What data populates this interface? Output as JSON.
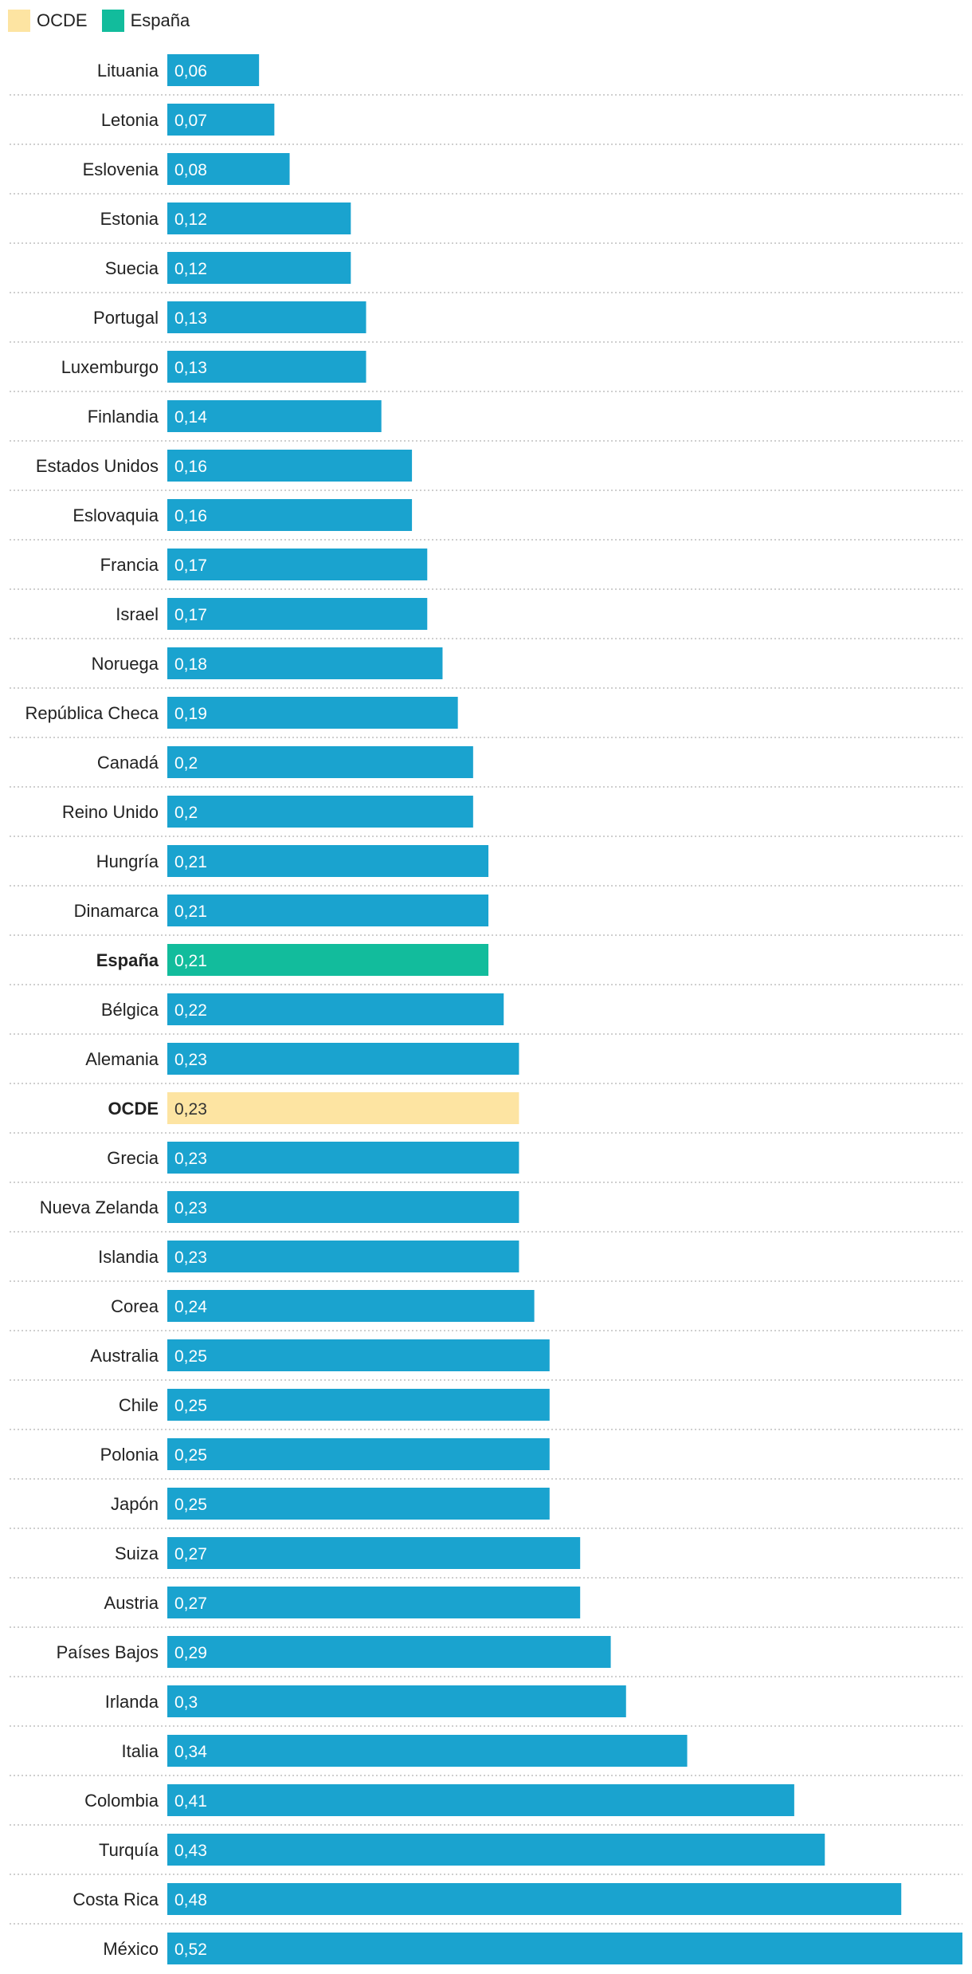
{
  "legend": {
    "items": [
      {
        "label": "OCDE",
        "color": "#fde4a2"
      },
      {
        "label": "España",
        "color": "#12bc9c"
      }
    ]
  },
  "colors": {
    "default": "#1aa3cf",
    "spain": "#12bc9c",
    "oecd": "#fde4a2",
    "label_on_dark": "#ffffff",
    "label_on_light": "#333333"
  },
  "chart_data": {
    "type": "bar",
    "orientation": "horizontal",
    "title": "",
    "xlabel": "",
    "ylabel": "",
    "xlim": [
      0,
      0.52
    ],
    "grid": false,
    "legend_position": "top-left",
    "highlighted": {
      "España": "spain",
      "OCDE": "oecd"
    },
    "categories": [
      "Lituania",
      "Letonia",
      "Eslovenia",
      "Estonia",
      "Suecia",
      "Portugal",
      "Luxemburgo",
      "Finlandia",
      "Estados Unidos",
      "Eslovaquia",
      "Francia",
      "Israel",
      "Noruega",
      "República Checa",
      "Canadá",
      "Reino Unido",
      "Hungría",
      "Dinamarca",
      "España",
      "Bélgica",
      "Alemania",
      "OCDE",
      "Grecia",
      "Nueva Zelanda",
      "Islandia",
      "Corea",
      "Australia",
      "Chile",
      "Polonia",
      "Japón",
      "Suiza",
      "Austria",
      "Países Bajos",
      "Irlanda",
      "Italia",
      "Colombia",
      "Turquía",
      "Costa Rica",
      "México"
    ],
    "values": [
      0.06,
      0.07,
      0.08,
      0.12,
      0.12,
      0.13,
      0.13,
      0.14,
      0.16,
      0.16,
      0.17,
      0.17,
      0.18,
      0.19,
      0.2,
      0.2,
      0.21,
      0.21,
      0.21,
      0.22,
      0.23,
      0.23,
      0.23,
      0.23,
      0.23,
      0.24,
      0.25,
      0.25,
      0.25,
      0.25,
      0.27,
      0.27,
      0.29,
      0.3,
      0.34,
      0.41,
      0.43,
      0.48,
      0.52
    ],
    "value_labels": [
      "0,06",
      "0,07",
      "0,08",
      "0,12",
      "0,12",
      "0,13",
      "0,13",
      "0,14",
      "0,16",
      "0,16",
      "0,17",
      "0,17",
      "0,18",
      "0,19",
      "0,2",
      "0,2",
      "0,21",
      "0,21",
      "0,21",
      "0,22",
      "0,23",
      "0,23",
      "0,23",
      "0,23",
      "0,23",
      "0,24",
      "0,25",
      "0,25",
      "0,25",
      "0,25",
      "0,27",
      "0,27",
      "0,29",
      "0,3",
      "0,34",
      "0,41",
      "0,43",
      "0,48",
      "0,52"
    ]
  }
}
